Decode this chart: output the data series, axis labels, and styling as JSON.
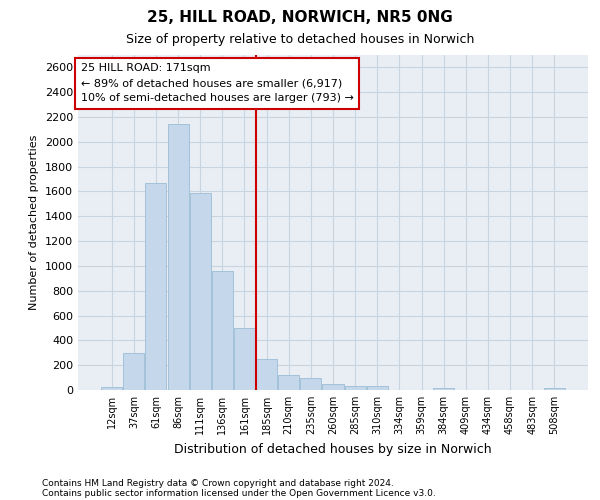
{
  "title": "25, HILL ROAD, NORWICH, NR5 0NG",
  "subtitle": "Size of property relative to detached houses in Norwich",
  "xlabel": "Distribution of detached houses by size in Norwich",
  "ylabel": "Number of detached properties",
  "footer_line1": "Contains HM Land Registry data © Crown copyright and database right 2024.",
  "footer_line2": "Contains public sector information licensed under the Open Government Licence v3.0.",
  "annotation_line1": "25 HILL ROAD: 171sqm",
  "annotation_line2": "← 89% of detached houses are smaller (6,917)",
  "annotation_line3": "10% of semi-detached houses are larger (793) →",
  "bar_color": "#c5d8eb",
  "bar_edge_color": "#9bbcd4",
  "vline_color": "#cc0000",
  "annotation_box_color": "#ffffff",
  "annotation_box_edge_color": "#cc0000",
  "grid_color": "#c8d4e0",
  "background_color": "#e8eef4",
  "categories": [
    "12sqm",
    "37sqm",
    "61sqm",
    "86sqm",
    "111sqm",
    "136sqm",
    "161sqm",
    "185sqm",
    "210sqm",
    "235sqm",
    "260sqm",
    "285sqm",
    "310sqm",
    "334sqm",
    "359sqm",
    "384sqm",
    "409sqm",
    "434sqm",
    "458sqm",
    "483sqm",
    "508sqm"
  ],
  "values": [
    25,
    300,
    1670,
    2140,
    1590,
    960,
    500,
    250,
    120,
    100,
    50,
    30,
    30,
    0,
    0,
    20,
    0,
    0,
    0,
    0,
    20
  ],
  "vline_x_index": 6.5,
  "ylim": [
    0,
    2700
  ],
  "yticks": [
    0,
    200,
    400,
    600,
    800,
    1000,
    1200,
    1400,
    1600,
    1800,
    2000,
    2200,
    2400,
    2600
  ]
}
